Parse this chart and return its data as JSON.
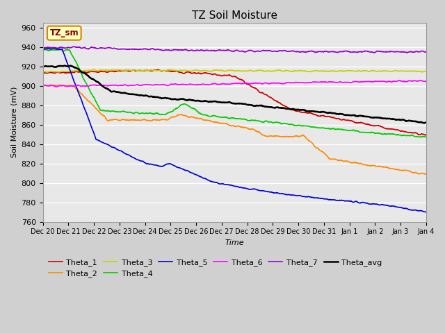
{
  "title": "TZ Soil Moisture",
  "xlabel": "Time",
  "ylabel": "Soil Moisture (mV)",
  "ylim": [
    760,
    965
  ],
  "yticks": [
    760,
    780,
    800,
    820,
    840,
    860,
    880,
    900,
    920,
    940,
    960
  ],
  "fig_bg_color": "#d0d0d0",
  "axes_bg_color": "#e8e8e8",
  "grid_color": "#ffffff",
  "legend_label": "TZ_sm",
  "xtick_labels": [
    "Dec 20",
    "Dec 21",
    "Dec 22",
    "Dec 23",
    "Dec 24",
    "Dec 25",
    "Dec 26",
    "Dec 27",
    "Dec 28",
    "Dec 29",
    "Dec 30",
    "Dec 31",
    "Jan 1",
    "Jan 2",
    "Jan 3",
    "Jan 4"
  ],
  "series_colors": {
    "Theta_1": "#cc0000",
    "Theta_2": "#ff8800",
    "Theta_3": "#cccc00",
    "Theta_4": "#00cc00",
    "Theta_5": "#0000cc",
    "Theta_6": "#ff00ff",
    "Theta_7": "#9900cc",
    "Theta_avg": "#000000"
  }
}
